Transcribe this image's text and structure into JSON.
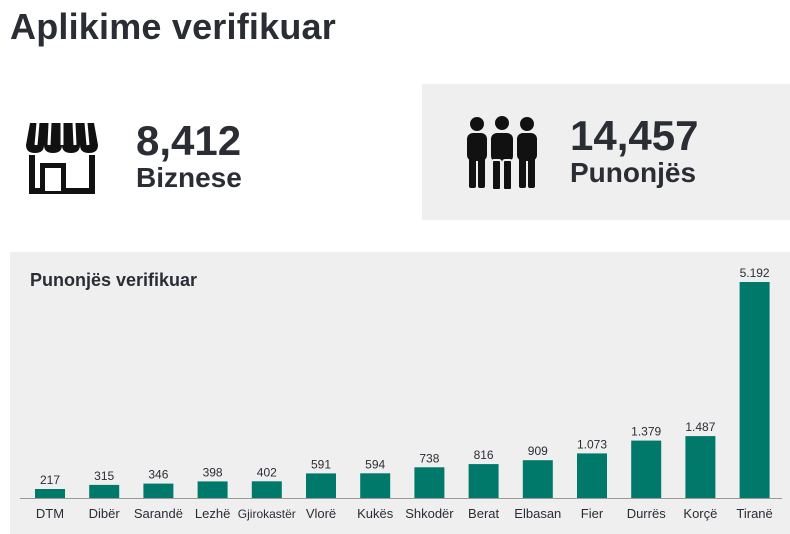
{
  "header": {
    "title": "Aplikime verifikuar"
  },
  "stats": {
    "businesses": {
      "value": "8,412",
      "label": "Biznese",
      "icon": "store-icon"
    },
    "employees": {
      "value": "14,457",
      "label": "Punonjës",
      "icon": "people-icon"
    }
  },
  "colors": {
    "bar": "#00796b",
    "text": "#2a2d34",
    "panel": "#efefef"
  },
  "chart_data": {
    "type": "bar",
    "title": "Punonjës verifikuar",
    "xlabel": "",
    "ylabel": "",
    "categories": [
      "DTM",
      "Dibër",
      "Sarandë",
      "Lezhë",
      "Gjirokastër",
      "Vlorë",
      "Kukës",
      "Shkodër",
      "Berat",
      "Elbasan",
      "Fier",
      "Durrës",
      "Korçë",
      "Tiranë"
    ],
    "values": [
      217,
      315,
      346,
      398,
      402,
      591,
      594,
      738,
      816,
      909,
      1073,
      1379,
      1487,
      5192
    ],
    "value_labels": [
      "217",
      "315",
      "346",
      "398",
      "402",
      "591",
      "594",
      "738",
      "816",
      "909",
      "1.073",
      "1.379",
      "1.487",
      "5.192"
    ],
    "ylim": [
      0,
      5192
    ],
    "grid": false,
    "legend": "none"
  }
}
